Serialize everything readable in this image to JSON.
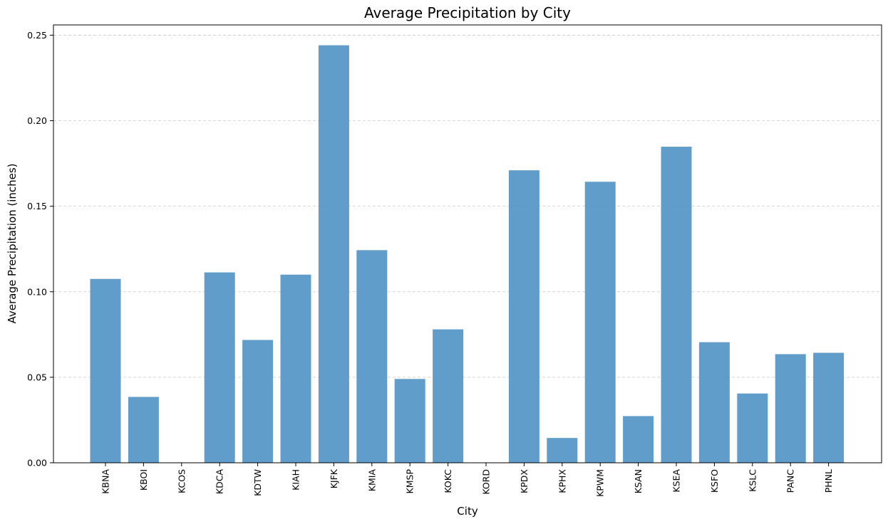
{
  "chart_data": {
    "type": "bar",
    "title": "Average Precipitation by City",
    "xlabel": "City",
    "ylabel": "Average Precipitation (inches)",
    "categories": [
      "KBNA",
      "KBOI",
      "KCOS",
      "KDCA",
      "KDTW",
      "KIAH",
      "KJFK",
      "KMIA",
      "KMSP",
      "KOKC",
      "KORD",
      "KPDX",
      "KPHX",
      "KPWM",
      "KSAN",
      "KSEA",
      "KSFO",
      "KSLC",
      "PANC",
      "PHNL"
    ],
    "values": [
      0.1075,
      0.0385,
      0.0,
      0.1113,
      0.0718,
      0.11,
      0.2441,
      0.1243,
      0.049,
      0.078,
      0.0,
      0.171,
      0.0145,
      0.1643,
      0.0273,
      0.1848,
      0.0705,
      0.0405,
      0.0635,
      0.0643
    ],
    "ylim": [
      0,
      0.256
    ],
    "yticks": [
      0.0,
      0.05,
      0.1,
      0.15,
      0.2,
      0.25
    ],
    "ytick_labels": [
      "0.00",
      "0.05",
      "0.10",
      "0.15",
      "0.20",
      "0.25"
    ],
    "grid": "y-dashed",
    "bar_color": "#4f92c4",
    "bar_opacity": 0.9
  }
}
